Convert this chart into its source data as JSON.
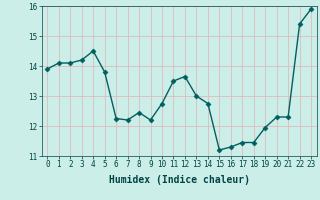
{
  "x": [
    0,
    1,
    2,
    3,
    4,
    5,
    6,
    7,
    8,
    9,
    10,
    11,
    12,
    13,
    14,
    15,
    16,
    17,
    18,
    19,
    20,
    21,
    22,
    23
  ],
  "y": [
    13.9,
    14.1,
    14.1,
    14.2,
    14.5,
    13.8,
    12.25,
    12.2,
    12.45,
    12.2,
    12.75,
    13.5,
    13.65,
    13.0,
    12.75,
    11.2,
    11.3,
    11.45,
    11.45,
    11.95,
    12.3,
    12.3,
    15.4,
    15.9
  ],
  "line_color": "#006060",
  "marker": "D",
  "marker_size": 2.5,
  "linewidth": 1.0,
  "xlabel": "Humidex (Indice chaleur)",
  "xlabel_fontsize": 7,
  "ylim": [
    11,
    16
  ],
  "xlim": [
    -0.5,
    23.5
  ],
  "yticks": [
    11,
    12,
    13,
    14,
    15,
    16
  ],
  "xticks": [
    0,
    1,
    2,
    3,
    4,
    5,
    6,
    7,
    8,
    9,
    10,
    11,
    12,
    13,
    14,
    15,
    16,
    17,
    18,
    19,
    20,
    21,
    22,
    23
  ],
  "bg_color": "#cceee8",
  "grid_color": "#ddbbbb",
  "tick_fontsize": 5.5
}
